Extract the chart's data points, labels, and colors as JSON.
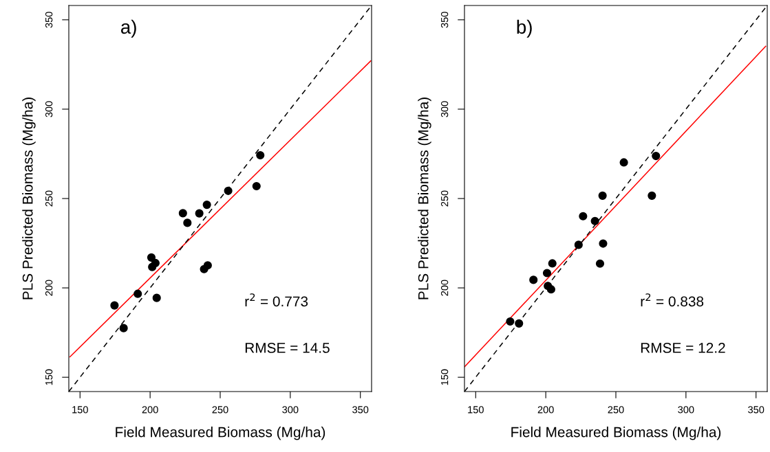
{
  "chart_data": [
    {
      "type": "scatter",
      "xlabel": "Field Measured Biomass (Mg/ha)",
      "ylabel": "PLS Predicted Biomass (Mg/ha)",
      "xlim": [
        142,
        358
      ],
      "ylim": [
        142,
        358
      ],
      "xticks": [
        150,
        200,
        250,
        300,
        350
      ],
      "yticks": [
        150,
        200,
        250,
        300,
        350
      ],
      "grid": false,
      "marker": "circle",
      "annotations": [
        "a)",
        "r$^{2}$ = 0.773",
        "RMSE = 14.5"
      ],
      "series": [
        {
          "color": "#000000",
          "x": [
            278.6,
            275.9,
            255.7,
            240.5,
            223.4,
            235.1,
            226.6,
            200.9,
            203.8,
            201.5,
            241.1,
            238.5,
            191.2,
            204.7,
            174.6,
            181.1
          ],
          "values": [
            274.2,
            256.9,
            254.3,
            246.5,
            241.8,
            241.7,
            236.4,
            217.0,
            213.9,
            211.7,
            212.6,
            210.5,
            196.7,
            194.4,
            190.2,
            177.5
          ]
        },
        {
          "type": "line",
          "color": "#ff0000",
          "line_style": "solid",
          "marker": "none",
          "x": [
            142.8,
            357.4
          ],
          "values": [
            161.4,
            327.0
          ]
        },
        {
          "type": "line",
          "color": "#000000",
          "line_style": "dashed",
          "marker": "none",
          "x": [
            142,
            358
          ],
          "values": [
            142,
            358
          ]
        }
      ]
    },
    {
      "type": "scatter",
      "xlabel": "Field Measured Biomass (Mg/ha)",
      "ylabel": "PLS Predicted Biomass (Mg/ha)",
      "xlim": [
        142,
        358
      ],
      "ylim": [
        142,
        358
      ],
      "xticks": [
        150,
        200,
        250,
        300,
        350
      ],
      "yticks": [
        150,
        200,
        250,
        300,
        350
      ],
      "grid": false,
      "marker": "circle",
      "annotations": [
        "b)",
        "r$^{2}$ = 0.838",
        "RMSE = 12.2"
      ],
      "series": [
        {
          "color": "#000000",
          "x": [
            278.6,
            255.7,
            240.5,
            275.7,
            226.6,
            235.1,
            223.4,
            240.9,
            204.7,
            238.7,
            200.9,
            191.2,
            201.5,
            203.8,
            174.6,
            180.9
          ],
          "values": [
            273.8,
            270.2,
            251.6,
            251.6,
            240.1,
            237.4,
            224.1,
            224.8,
            213.7,
            213.6,
            208.3,
            204.5,
            201.1,
            199.2,
            181.2,
            180.1
          ]
        },
        {
          "type": "line",
          "color": "#ff0000",
          "line_style": "solid",
          "marker": "none",
          "x": [
            142.2,
            356.9
          ],
          "values": [
            156.0,
            335.2
          ]
        },
        {
          "type": "line",
          "color": "#000000",
          "line_style": "dashed",
          "marker": "none",
          "x": [
            142,
            358
          ],
          "values": [
            142,
            358
          ]
        }
      ]
    }
  ]
}
